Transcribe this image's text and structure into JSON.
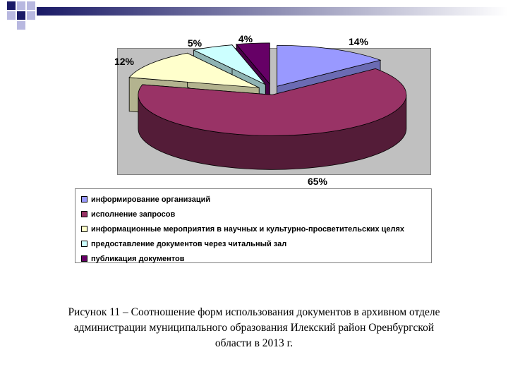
{
  "colors": {
    "deco_square_a": "#1a1a66",
    "deco_square_b": "#b8b8e0",
    "deco_gradient_start": "#1a1a66",
    "deco_gradient_end": "#ffffff",
    "plot_background": "#c0c0c0"
  },
  "chart_data": {
    "type": "pie",
    "style": "3d-exploded",
    "title": "",
    "slices": [
      {
        "label": "информирование организаций",
        "value": 14,
        "value_label": "14%",
        "color": "#9999ff"
      },
      {
        "label": "исполнение запросов",
        "value": 65,
        "value_label": "65%",
        "color": "#993366"
      },
      {
        "label": "информационные мероприятия в научных и культурно-просветительских целях",
        "value": 12,
        "value_label": "12%",
        "color": "#ffffcc"
      },
      {
        "label": "предоставление документов через читальный зал",
        "value": 5,
        "value_label": "5%",
        "color": "#ccffff"
      },
      {
        "label": "публикация документов",
        "value": 4,
        "value_label": "4%",
        "color": "#660066"
      }
    ],
    "legend_position": "bottom"
  },
  "caption": {
    "line1": "Рисунок 11 – Соотношение форм использования документов в архивном отделе",
    "line2": "администрации муниципального образования Илекский район Оренбургской",
    "line3": "области в 2013 г."
  }
}
